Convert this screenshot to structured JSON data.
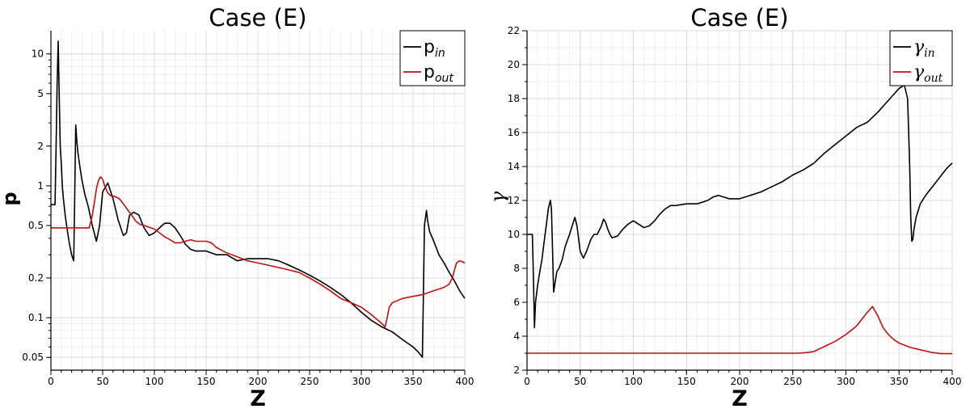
{
  "chart_data": [
    {
      "type": "line",
      "title": "Case (E)",
      "xlabel": "Z",
      "ylabel": "p",
      "xlim": [
        0,
        400
      ],
      "ylim": [
        0.04,
        15
      ],
      "yscale": "log",
      "grid": true,
      "legend_position": "top-right",
      "xticks": [
        0,
        50,
        100,
        150,
        200,
        250,
        300,
        350,
        400
      ],
      "yticks": [
        0.05,
        0.1,
        0.2,
        0.5,
        1,
        2,
        5,
        10
      ],
      "yticklabels": [
        "0.05",
        "0.1",
        "0.2",
        "0.5",
        "1",
        "2",
        "5",
        "10"
      ],
      "series": [
        {
          "name": "p",
          "subscript": "in",
          "color": "#000000",
          "x": [
            0,
            4,
            5,
            6,
            7,
            8,
            9,
            10,
            11,
            12,
            14,
            16,
            18,
            20,
            22,
            23,
            24,
            25,
            26,
            28,
            30,
            33,
            36,
            40,
            44,
            47,
            50,
            55,
            60,
            65,
            70,
            73,
            76,
            80,
            85,
            90,
            95,
            100,
            105,
            110,
            115,
            120,
            125,
            130,
            135,
            140,
            150,
            160,
            170,
            180,
            190,
            200,
            210,
            220,
            230,
            240,
            250,
            260,
            270,
            280,
            290,
            300,
            310,
            320,
            330,
            340,
            350,
            355,
            359,
            360,
            361,
            363,
            364,
            366,
            370,
            375,
            380,
            385,
            390,
            395,
            400
          ],
          "y": [
            0.72,
            0.72,
            2.0,
            6.0,
            12.5,
            5.0,
            2.0,
            1.5,
            1.0,
            0.8,
            0.58,
            0.45,
            0.36,
            0.3,
            0.27,
            0.8,
            2.9,
            2.2,
            1.8,
            1.4,
            1.1,
            0.85,
            0.7,
            0.5,
            0.38,
            0.5,
            0.9,
            1.05,
            0.8,
            0.55,
            0.42,
            0.44,
            0.6,
            0.63,
            0.6,
            0.48,
            0.42,
            0.44,
            0.48,
            0.52,
            0.52,
            0.48,
            0.42,
            0.36,
            0.33,
            0.32,
            0.32,
            0.3,
            0.3,
            0.27,
            0.28,
            0.28,
            0.28,
            0.27,
            0.25,
            0.23,
            0.21,
            0.19,
            0.17,
            0.15,
            0.13,
            0.11,
            0.095,
            0.085,
            0.078,
            0.068,
            0.06,
            0.055,
            0.05,
            0.15,
            0.5,
            0.65,
            0.55,
            0.45,
            0.38,
            0.3,
            0.26,
            0.22,
            0.19,
            0.16,
            0.14
          ]
        },
        {
          "name": "p",
          "subscript": "out",
          "color": "#c01010",
          "x": [
            0,
            20,
            37,
            39,
            40,
            42,
            44,
            46,
            48,
            50,
            52,
            55,
            58,
            62,
            66,
            70,
            74,
            78,
            82,
            86,
            90,
            100,
            105,
            110,
            115,
            120,
            125,
            130,
            135,
            140,
            145,
            150,
            155,
            160,
            170,
            180,
            190,
            200,
            210,
            220,
            230,
            240,
            250,
            260,
            270,
            280,
            290,
            300,
            310,
            320,
            323,
            325,
            327,
            330,
            335,
            340,
            350,
            360,
            370,
            380,
            385,
            388,
            390,
            392,
            395,
            398,
            400
          ],
          "y": [
            0.48,
            0.48,
            0.48,
            0.55,
            0.6,
            0.75,
            0.95,
            1.1,
            1.17,
            1.12,
            1.0,
            0.88,
            0.84,
            0.83,
            0.8,
            0.73,
            0.66,
            0.6,
            0.54,
            0.51,
            0.5,
            0.47,
            0.44,
            0.41,
            0.39,
            0.37,
            0.37,
            0.38,
            0.39,
            0.38,
            0.38,
            0.38,
            0.37,
            0.34,
            0.31,
            0.29,
            0.27,
            0.26,
            0.25,
            0.24,
            0.23,
            0.22,
            0.2,
            0.18,
            0.16,
            0.14,
            0.13,
            0.12,
            0.105,
            0.09,
            0.085,
            0.1,
            0.12,
            0.13,
            0.135,
            0.14,
            0.145,
            0.15,
            0.16,
            0.17,
            0.18,
            0.2,
            0.23,
            0.26,
            0.27,
            0.265,
            0.26
          ]
        }
      ]
    },
    {
      "type": "line",
      "title": "Case (E)",
      "xlabel": "Z",
      "ylabel": "γ",
      "xlim": [
        0,
        400
      ],
      "ylim": [
        2,
        22
      ],
      "yscale": "linear",
      "grid": true,
      "legend_position": "top-right",
      "xticks": [
        0,
        50,
        100,
        150,
        200,
        250,
        300,
        350,
        400
      ],
      "yticks": [
        2,
        4,
        6,
        8,
        10,
        12,
        14,
        16,
        18,
        20,
        22
      ],
      "yticklabels": [
        "2",
        "4",
        "6",
        "8",
        "10",
        "12",
        "14",
        "16",
        "18",
        "20",
        "22"
      ],
      "series": [
        {
          "name": "γ",
          "subscript": "in",
          "color": "#000000",
          "x": [
            0,
            5,
            6,
            7,
            8,
            10,
            12,
            14,
            16,
            18,
            20,
            22,
            23,
            24,
            25,
            26,
            28,
            30,
            33,
            36,
            40,
            43,
            45,
            47,
            50,
            53,
            56,
            60,
            63,
            66,
            70,
            72,
            74,
            76,
            78,
            80,
            85,
            90,
            95,
            100,
            105,
            110,
            115,
            120,
            125,
            130,
            135,
            140,
            150,
            160,
            170,
            175,
            180,
            185,
            190,
            200,
            210,
            220,
            230,
            240,
            250,
            260,
            270,
            280,
            290,
            300,
            310,
            320,
            330,
            340,
            350,
            355,
            358,
            360,
            361,
            362,
            363,
            364,
            366,
            370,
            375,
            380,
            385,
            390,
            395,
            400
          ],
          "y": [
            10.0,
            10.0,
            7.5,
            4.5,
            6.0,
            7.0,
            7.8,
            8.5,
            9.5,
            10.5,
            11.5,
            12.0,
            11.5,
            9.0,
            6.6,
            7.0,
            7.8,
            8.0,
            8.5,
            9.3,
            10.0,
            10.6,
            11.0,
            10.5,
            9.0,
            8.6,
            9.0,
            9.7,
            10.0,
            10.0,
            10.5,
            10.9,
            10.7,
            10.3,
            10.0,
            9.8,
            9.9,
            10.3,
            10.6,
            10.8,
            10.6,
            10.4,
            10.5,
            10.8,
            11.2,
            11.5,
            11.7,
            11.7,
            11.8,
            11.8,
            12.0,
            12.2,
            12.3,
            12.2,
            12.1,
            12.1,
            12.3,
            12.5,
            12.8,
            13.1,
            13.5,
            13.8,
            14.2,
            14.8,
            15.3,
            15.8,
            16.3,
            16.6,
            17.2,
            17.9,
            18.6,
            18.8,
            18.0,
            14.0,
            11.0,
            9.6,
            9.7,
            10.3,
            11.0,
            11.8,
            12.3,
            12.7,
            13.1,
            13.5,
            13.9,
            14.2
          ]
        },
        {
          "name": "γ",
          "subscript": "out",
          "color": "#c01010",
          "x": [
            0,
            50,
            100,
            150,
            200,
            250,
            255,
            260,
            265,
            270,
            280,
            290,
            300,
            310,
            315,
            320,
            325,
            330,
            335,
            340,
            345,
            350,
            360,
            370,
            380,
            390,
            400
          ],
          "y": [
            3.0,
            3.0,
            3.0,
            3.0,
            3.0,
            3.0,
            3.0,
            3.02,
            3.05,
            3.1,
            3.4,
            3.7,
            4.1,
            4.6,
            5.0,
            5.4,
            5.75,
            5.2,
            4.5,
            4.1,
            3.8,
            3.6,
            3.35,
            3.2,
            3.05,
            2.97,
            2.97
          ]
        }
      ]
    }
  ]
}
